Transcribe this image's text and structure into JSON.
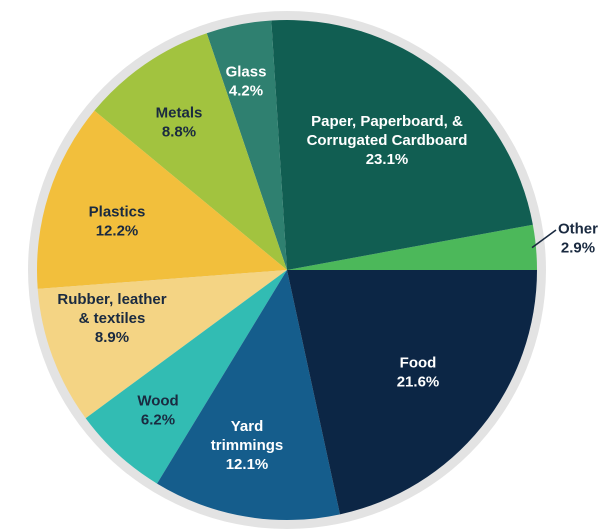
{
  "chart_data": {
    "type": "pie",
    "title": "",
    "start_angle_deg": 0,
    "direction": "counterclockwise",
    "rim_color": "#e3e3e3",
    "slices": [
      {
        "id": "other",
        "lines": [
          "Other"
        ],
        "value_label": "2.9%",
        "value": 2.9,
        "color": "#4cb85a",
        "text_color": "#1a2a40"
      },
      {
        "id": "paper",
        "lines": [
          "Paper, Paperboard, &",
          "Corrugated Cardboard"
        ],
        "value_label": "23.1%",
        "value": 23.1,
        "color": "#115e52",
        "text_color": "#ffffff"
      },
      {
        "id": "glass",
        "lines": [
          "Glass"
        ],
        "value_label": "4.2%",
        "value": 4.2,
        "color": "#2f8070",
        "text_color": "#ffffff"
      },
      {
        "id": "metals",
        "lines": [
          "Metals"
        ],
        "value_label": "8.8%",
        "value": 8.8,
        "color": "#a2c33f",
        "text_color": "#1a2a40"
      },
      {
        "id": "plastics",
        "lines": [
          "Plastics"
        ],
        "value_label": "12.2%",
        "value": 12.2,
        "color": "#f2bf3c",
        "text_color": "#1a2a40"
      },
      {
        "id": "rubber",
        "lines": [
          "Rubber, leather",
          "& textiles"
        ],
        "value_label": "8.9%",
        "value": 8.9,
        "color": "#f4d484",
        "text_color": "#1a2a40"
      },
      {
        "id": "wood",
        "lines": [
          "Wood"
        ],
        "value_label": "6.2%",
        "value": 6.2,
        "color": "#32bcb3",
        "text_color": "#1a2a40"
      },
      {
        "id": "yard",
        "lines": [
          "Yard",
          "trimmings"
        ],
        "value_label": "12.1%",
        "value": 12.1,
        "color": "#155d8c",
        "text_color": "#ffffff"
      },
      {
        "id": "food",
        "lines": [
          "Food"
        ],
        "value_label": "21.6%",
        "value": 21.6,
        "color": "#0c2645",
        "text_color": "#ffffff"
      }
    ]
  }
}
